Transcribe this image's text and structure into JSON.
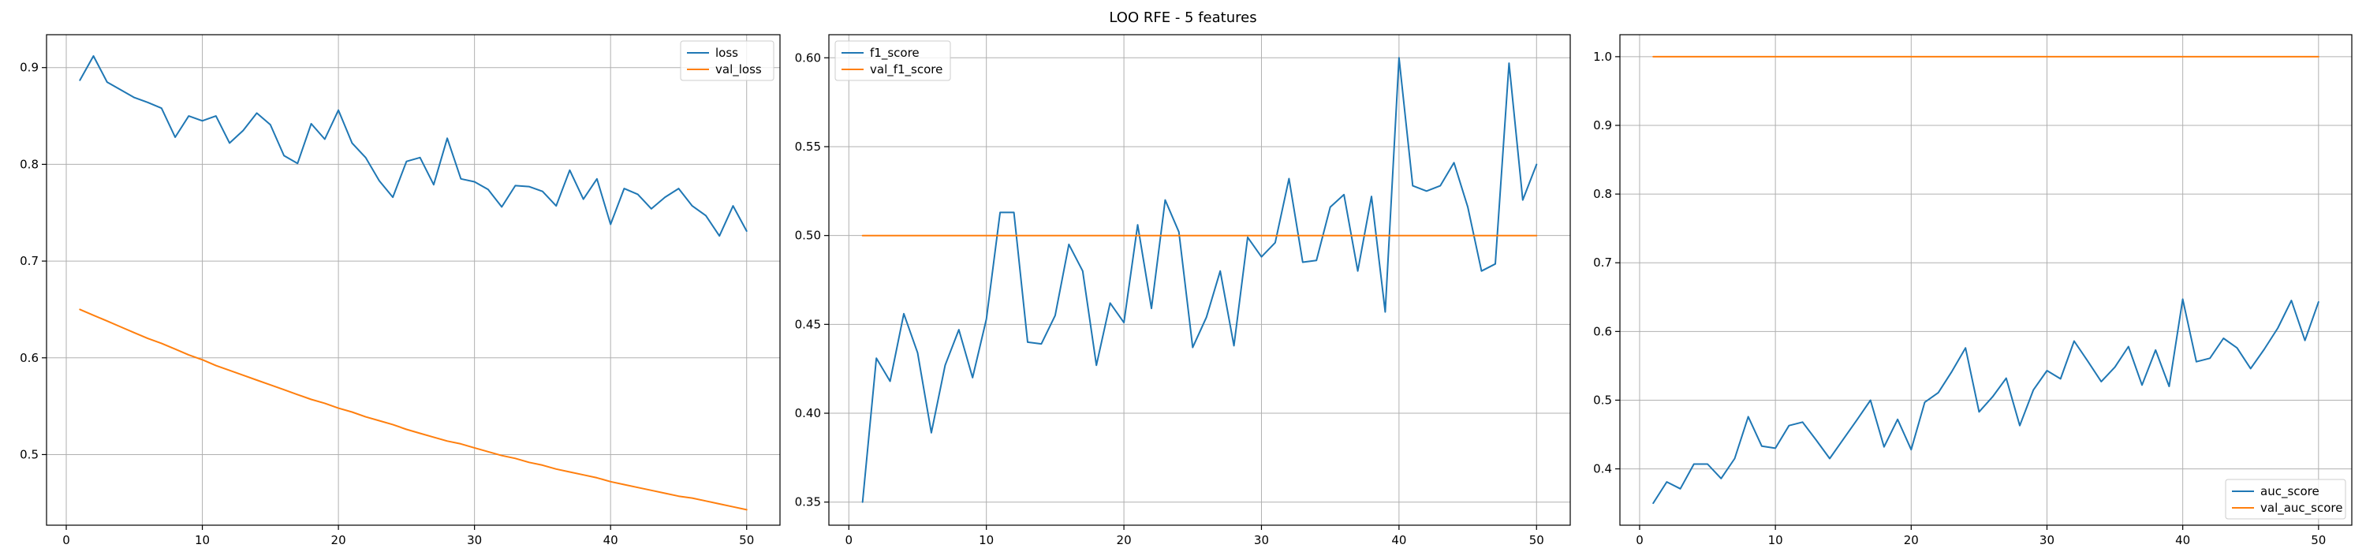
{
  "figure": {
    "title": "LOO RFE - 5 features"
  },
  "colors": {
    "series_a": "#1f77b4",
    "series_b": "#ff7f0e"
  },
  "chart_data": [
    {
      "type": "line",
      "grid": true,
      "legend_loc": "upper right",
      "xlim": [
        -1.45,
        52.45
      ],
      "ylim": [
        0.427,
        0.934
      ],
      "xticks": [
        0,
        10,
        20,
        30,
        40,
        50
      ],
      "yticks": [
        0.5,
        0.6,
        0.7,
        0.8,
        0.9
      ],
      "ytick_labels": [
        "0.5",
        "0.6",
        "0.7",
        "0.8",
        "0.9"
      ],
      "x": [
        1,
        2,
        3,
        4,
        5,
        6,
        7,
        8,
        9,
        10,
        11,
        12,
        13,
        14,
        15,
        16,
        17,
        18,
        19,
        20,
        21,
        22,
        23,
        24,
        25,
        26,
        27,
        28,
        29,
        30,
        31,
        32,
        33,
        34,
        35,
        36,
        37,
        38,
        39,
        40,
        41,
        42,
        43,
        44,
        45,
        46,
        47,
        48,
        49,
        50
      ],
      "series": [
        {
          "name": "loss",
          "color": "#1f77b4",
          "values": [
            0.887,
            0.912,
            0.885,
            0.877,
            0.869,
            0.864,
            0.858,
            0.828,
            0.85,
            0.845,
            0.85,
            0.822,
            0.835,
            0.853,
            0.841,
            0.809,
            0.801,
            0.842,
            0.826,
            0.856,
            0.822,
            0.807,
            0.783,
            0.766,
            0.803,
            0.807,
            0.779,
            0.827,
            0.785,
            0.782,
            0.774,
            0.756,
            0.778,
            0.777,
            0.772,
            0.757,
            0.794,
            0.764,
            0.785,
            0.738,
            0.775,
            0.769,
            0.754,
            0.766,
            0.775,
            0.757,
            0.747,
            0.726,
            0.757,
            0.731
          ]
        },
        {
          "name": "val_loss",
          "color": "#ff7f0e",
          "values": [
            0.65,
            0.644,
            0.638,
            0.632,
            0.626,
            0.62,
            0.615,
            0.609,
            0.603,
            0.598,
            0.592,
            0.587,
            0.582,
            0.577,
            0.572,
            0.567,
            0.562,
            0.557,
            0.553,
            0.548,
            0.544,
            0.539,
            0.535,
            0.531,
            0.526,
            0.522,
            0.518,
            0.514,
            0.511,
            0.507,
            0.503,
            0.499,
            0.496,
            0.492,
            0.489,
            0.485,
            0.482,
            0.479,
            0.476,
            0.472,
            0.469,
            0.466,
            0.463,
            0.46,
            0.457,
            0.455,
            0.452,
            0.449,
            0.446,
            0.443
          ]
        }
      ]
    },
    {
      "type": "line",
      "grid": true,
      "legend_loc": "upper left",
      "xlim": [
        -1.45,
        52.45
      ],
      "ylim": [
        0.337,
        0.613
      ],
      "xticks": [
        0,
        10,
        20,
        30,
        40,
        50
      ],
      "yticks": [
        0.35,
        0.4,
        0.45,
        0.5,
        0.55,
        0.6
      ],
      "ytick_labels": [
        "0.35",
        "0.40",
        "0.45",
        "0.50",
        "0.55",
        "0.60"
      ],
      "x": [
        1,
        2,
        3,
        4,
        5,
        6,
        7,
        8,
        9,
        10,
        11,
        12,
        13,
        14,
        15,
        16,
        17,
        18,
        19,
        20,
        21,
        22,
        23,
        24,
        25,
        26,
        27,
        28,
        29,
        30,
        31,
        32,
        33,
        34,
        35,
        36,
        37,
        38,
        39,
        40,
        41,
        42,
        43,
        44,
        45,
        46,
        47,
        48,
        49,
        50
      ],
      "series": [
        {
          "name": "f1_score",
          "color": "#1f77b4",
          "values": [
            0.35,
            0.431,
            0.418,
            0.456,
            0.434,
            0.389,
            0.427,
            0.447,
            0.42,
            0.453,
            0.513,
            0.513,
            0.44,
            0.439,
            0.455,
            0.495,
            0.48,
            0.427,
            0.462,
            0.451,
            0.506,
            0.459,
            0.52,
            0.502,
            0.437,
            0.454,
            0.48,
            0.438,
            0.499,
            0.488,
            0.496,
            0.532,
            0.485,
            0.486,
            0.516,
            0.523,
            0.48,
            0.522,
            0.457,
            0.6,
            0.528,
            0.525,
            0.528,
            0.541,
            0.516,
            0.48,
            0.484,
            0.597,
            0.52,
            0.54
          ]
        },
        {
          "name": "val_f1_score",
          "color": "#ff7f0e",
          "values": [
            0.5,
            0.5,
            0.5,
            0.5,
            0.5,
            0.5,
            0.5,
            0.5,
            0.5,
            0.5,
            0.5,
            0.5,
            0.5,
            0.5,
            0.5,
            0.5,
            0.5,
            0.5,
            0.5,
            0.5,
            0.5,
            0.5,
            0.5,
            0.5,
            0.5,
            0.5,
            0.5,
            0.5,
            0.5,
            0.5,
            0.5,
            0.5,
            0.5,
            0.5,
            0.5,
            0.5,
            0.5,
            0.5,
            0.5,
            0.5,
            0.5,
            0.5,
            0.5,
            0.5,
            0.5,
            0.5,
            0.5,
            0.5,
            0.5,
            0.5
          ]
        }
      ]
    },
    {
      "type": "line",
      "grid": true,
      "legend_loc": "lower right",
      "xlim": [
        -1.45,
        52.45
      ],
      "ylim": [
        0.318,
        1.032
      ],
      "xticks": [
        0,
        10,
        20,
        30,
        40,
        50
      ],
      "yticks": [
        0.4,
        0.5,
        0.6,
        0.7,
        0.8,
        0.9,
        1.0
      ],
      "ytick_labels": [
        "0.4",
        "0.5",
        "0.6",
        "0.7",
        "0.8",
        "0.9",
        "1.0"
      ],
      "x": [
        1,
        2,
        3,
        4,
        5,
        6,
        7,
        8,
        9,
        10,
        11,
        12,
        13,
        14,
        15,
        16,
        17,
        18,
        19,
        20,
        21,
        22,
        23,
        24,
        25,
        26,
        27,
        28,
        29,
        30,
        31,
        32,
        33,
        34,
        35,
        36,
        37,
        38,
        39,
        40,
        41,
        42,
        43,
        44,
        45,
        46,
        47,
        48,
        49,
        50
      ],
      "series": [
        {
          "name": "auc_score",
          "color": "#1f77b4",
          "values": [
            0.35,
            0.381,
            0.371,
            0.407,
            0.407,
            0.386,
            0.415,
            0.476,
            0.433,
            0.43,
            0.463,
            0.468,
            0.442,
            0.415,
            0.443,
            0.471,
            0.5,
            0.432,
            0.472,
            0.428,
            0.497,
            0.511,
            0.542,
            0.576,
            0.483,
            0.505,
            0.532,
            0.463,
            0.515,
            0.543,
            0.531,
            0.586,
            0.557,
            0.527,
            0.548,
            0.578,
            0.522,
            0.573,
            0.52,
            0.647,
            0.556,
            0.561,
            0.59,
            0.576,
            0.546,
            0.574,
            0.605,
            0.645,
            0.587,
            0.643
          ]
        },
        {
          "name": "val_auc_score",
          "color": "#ff7f0e",
          "values": [
            1,
            1,
            1,
            1,
            1,
            1,
            1,
            1,
            1,
            1,
            1,
            1,
            1,
            1,
            1,
            1,
            1,
            1,
            1,
            1,
            1,
            1,
            1,
            1,
            1,
            1,
            1,
            1,
            1,
            1,
            1,
            1,
            1,
            1,
            1,
            1,
            1,
            1,
            1,
            1,
            1,
            1,
            1,
            1,
            1,
            1,
            1,
            1,
            1,
            1
          ]
        }
      ]
    }
  ]
}
